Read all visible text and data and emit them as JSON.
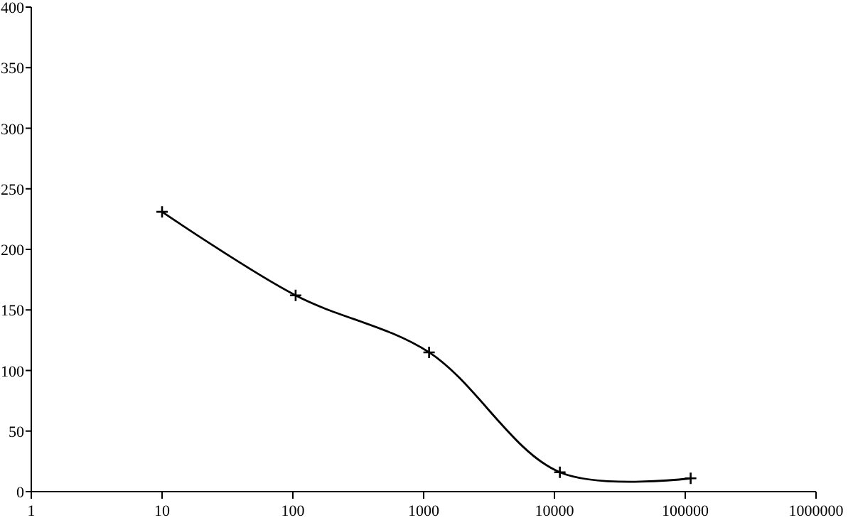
{
  "chart_data": {
    "type": "line",
    "log": "x",
    "marker": "cross",
    "line_style": "solid",
    "x": [
      10,
      105,
      1100,
      11000,
      110000
    ],
    "series": [
      {
        "color": "#000000",
        "values": [
          231,
          162,
          115,
          16,
          11
        ]
      }
    ],
    "xlim": [
      1,
      1000000
    ],
    "ylim": [
      0,
      400
    ],
    "xticks": [
      1,
      10,
      100,
      1000,
      10000,
      100000,
      1000000
    ],
    "yticks": [
      0,
      50,
      100,
      150,
      200,
      250,
      300,
      350,
      400
    ]
  }
}
